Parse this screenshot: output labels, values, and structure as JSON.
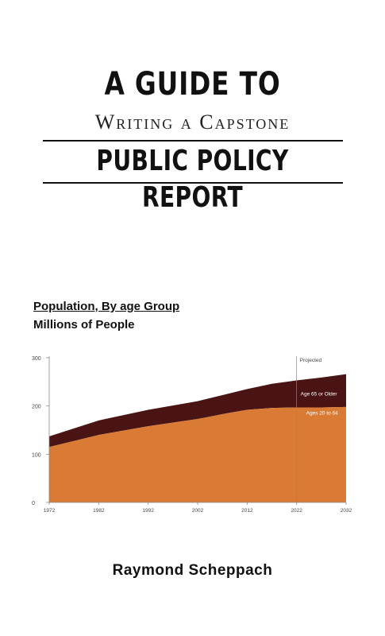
{
  "cover": {
    "title_line1": "A GUIDE TO",
    "title_line2": "Writing a Capstone",
    "title_line3": "PUBLIC POLICY REPORT",
    "author": "Raymond Scheppach"
  },
  "chart_data": {
    "type": "area",
    "title": "Population, By age Group",
    "subtitle": "Millions of People",
    "x": [
      1972,
      1982,
      1992,
      2002,
      2008,
      2012,
      2017,
      2022,
      2027,
      2032
    ],
    "series": [
      {
        "name": "Ages 20 to 64",
        "values": [
          115,
          140,
          158,
          173,
          185,
          192,
          196,
          197,
          197,
          198
        ]
      },
      {
        "name": "Age 65 or Older",
        "values": [
          22,
          30,
          34,
          37,
          40,
          43,
          50,
          56,
          62,
          68
        ]
      }
    ],
    "stacked": true,
    "ylim": [
      0,
      300
    ],
    "yticks": [
      0,
      100,
      200,
      300
    ],
    "xticks": [
      1972,
      1982,
      1992,
      2002,
      2012,
      2022,
      2032
    ],
    "annotation": {
      "label": "Projected",
      "x": 2022
    },
    "colors": {
      "Ages 20 to 64": "#d97b34",
      "Age 65 or Older": "#4a1414"
    }
  }
}
